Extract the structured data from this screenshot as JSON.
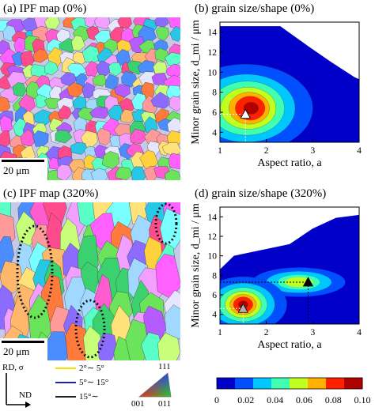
{
  "panels": {
    "a": {
      "title": "(a) IPF map (0%)",
      "scale_label": "20 μm"
    },
    "b": {
      "title": "(b) grain size/shape (0%)"
    },
    "c": {
      "title": "(c) IPF map (320%)",
      "scale_label": "20 μm"
    },
    "d": {
      "title": "(d) grain size/shape (320%)"
    }
  },
  "legend": {
    "axis_label_rd": "RD, σ",
    "axis_label_nd": "ND",
    "boundaries": [
      {
        "label": "2°∼ 5°",
        "color": "#f5e100"
      },
      {
        "label": "5°∼ 15°",
        "color": "#1e1eb4"
      },
      {
        "label": "15°∼",
        "color": "#222222"
      }
    ],
    "triangle": {
      "top": "111",
      "left": "001",
      "right": "011"
    }
  },
  "colorbar": {
    "ticks": [
      "0",
      "0.02",
      "0.04",
      "0.06",
      "0.08",
      "0.10"
    ],
    "colors": [
      "#0000c8",
      "#0050ff",
      "#00c8ff",
      "#40ffb0",
      "#c0ff20",
      "#ffb000",
      "#ff2000",
      "#b00000"
    ]
  },
  "chart_data": [
    {
      "type": "heatmap",
      "title": "(b) grain size/shape (0%)",
      "xlabel": "Aspect ratio, a",
      "ylabel": "Minor grain size, d_mi / μm",
      "xlim": [
        1,
        4
      ],
      "ylim": [
        3,
        15
      ],
      "xticks": [
        "1",
        "2",
        "3",
        "4"
      ],
      "yticks": [
        "4",
        "6",
        "8",
        "10",
        "12",
        "14"
      ],
      "peak": {
        "x": 1.55,
        "y": 5.8
      },
      "clim": [
        0,
        0.1
      ]
    },
    {
      "type": "heatmap",
      "title": "(d) grain size/shape (320%)",
      "xlabel": "Aspect ratio, a",
      "ylabel": "Minor grain size, d_mi / μm",
      "xlim": [
        1,
        4
      ],
      "ylim": [
        3,
        15
      ],
      "xticks": [
        "1",
        "2",
        "3",
        "4"
      ],
      "yticks": [
        "4",
        "6",
        "8",
        "10",
        "12",
        "14"
      ],
      "peak": {
        "x": 1.5,
        "y": 4.6
      },
      "secondary_peak": {
        "x": 2.9,
        "y": 7.3
      },
      "clim": [
        0,
        0.1
      ]
    }
  ]
}
